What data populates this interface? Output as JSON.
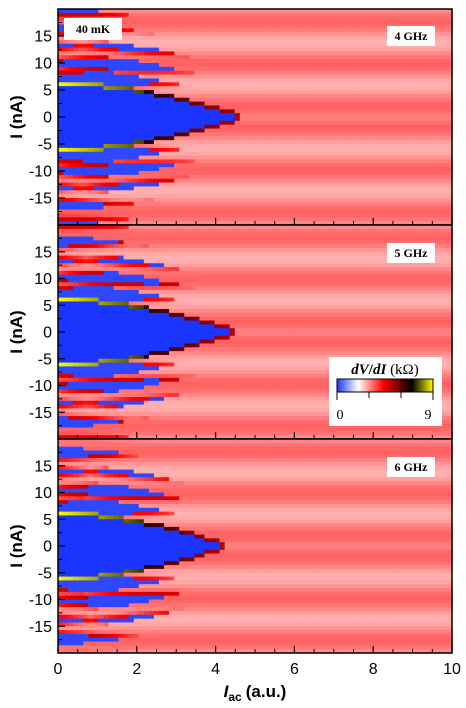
{
  "chart_data": [
    {
      "type": "heatmap",
      "frequency_label": "4 GHz",
      "temperature_label": "40 mK",
      "freq_ghz": 4,
      "xlim": [
        0,
        10
      ],
      "ylim": [
        -20,
        20
      ],
      "xticks": [
        0,
        2,
        4,
        6,
        8,
        10
      ],
      "yticks": [
        15,
        10,
        5,
        0,
        -5,
        -10,
        -15
      ],
      "ylabel": "I (nA)",
      "zero_voltage_half_width_nA": 6,
      "lobe_node_Iac": 4.8,
      "features": "central blue zero-voltage region (|I| < ~6 nA at I_ac = 0) shrinking to a node near I_ac = 4.8; red/black/yellow peaks along region boundary; shifted Shapiro-step lobes at higher |I|"
    },
    {
      "type": "heatmap",
      "frequency_label": "5 GHz",
      "freq_ghz": 5,
      "xlim": [
        0,
        10
      ],
      "ylim": [
        -20,
        20
      ],
      "xticks": [
        0,
        2,
        4,
        6,
        8,
        10
      ],
      "yticks": [
        15,
        10,
        5,
        0,
        -5,
        -10,
        -15
      ],
      "ylabel": "I (nA)",
      "zero_voltage_half_width_nA": 6,
      "lobe_node_Iac": 4.6,
      "features": "same structure as 4 GHz with wider step spacing"
    },
    {
      "type": "heatmap",
      "frequency_label": "6 GHz",
      "freq_ghz": 6,
      "xlim": [
        0,
        10
      ],
      "ylim": [
        -20,
        20
      ],
      "xticks": [
        0,
        2,
        4,
        6,
        8,
        10
      ],
      "yticks": [
        15,
        10,
        5,
        0,
        -5,
        -10,
        -15
      ],
      "ylabel": "I (nA)",
      "xlabel": "I_ac (a.u.)",
      "zero_voltage_half_width_nA": 6,
      "lobe_node_Iac": 4.4,
      "features": "same structure as 4 GHz with widest step spacing"
    }
  ],
  "colorbar": {
    "title": "dV/dI (kΩ)",
    "min_label": "0",
    "max_label": "9",
    "range": [
      0,
      9
    ],
    "stops": [
      "#1a35ff",
      "#ffffff",
      "#ff0000",
      "#000000",
      "#ffff00"
    ]
  },
  "labels": {
    "xlabel_main": "I",
    "xlabel_sub": "ac",
    "xlabel_units": "(a.u.)",
    "ylabel": "I (nA)"
  },
  "colors": {
    "blue": "#1a35ff",
    "red": "#ff0000",
    "white": "#ffffff",
    "black": "#000000",
    "yellow": "#ffff00"
  }
}
